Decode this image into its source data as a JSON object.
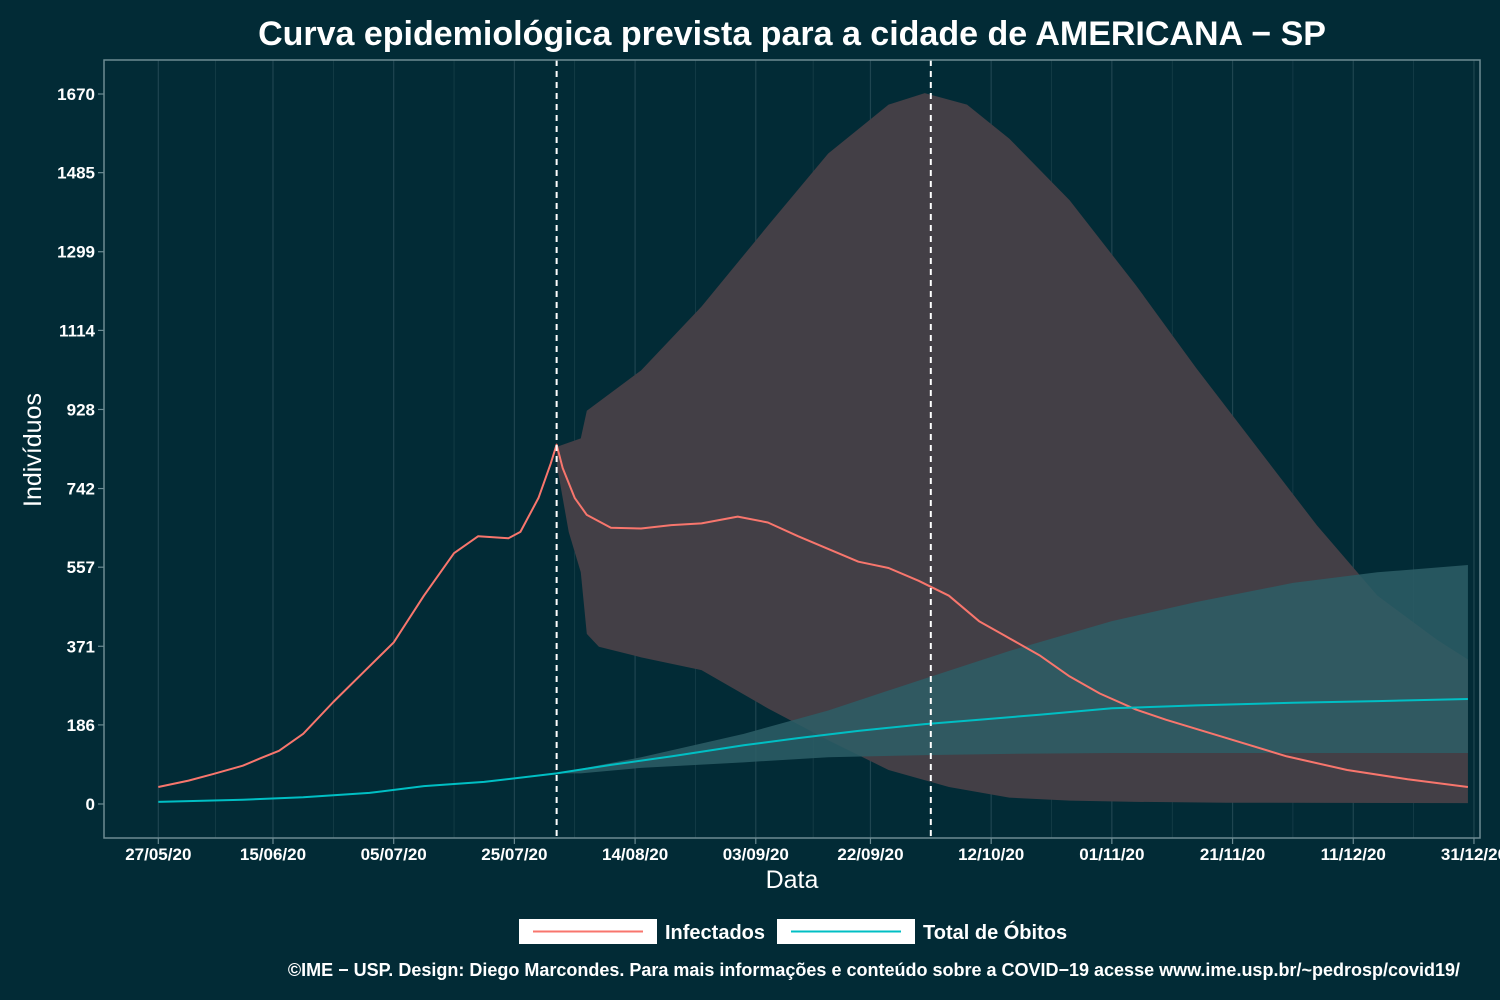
{
  "colors": {
    "background": "#022b36",
    "panel_border": "#6c8b92",
    "grid": "#1f4550",
    "infected": "#f8766d",
    "deaths": "#00bfc4",
    "infected_band": "#433f46",
    "deaths_band": "#2d5e66",
    "overlap_band": "#2c5b63",
    "vline": "#ffffff",
    "legend_key_bg": "#ffffff"
  },
  "chart_data": {
    "type": "line",
    "title": "Curva epidemiológica prevista para a cidade de AMERICANA − SP",
    "xlabel": "Data",
    "ylabel": "Indivíduos",
    "x_start": "2020-05-27",
    "x_end": "2020-12-30",
    "xlim": [
      "2020-05-18",
      "2021-01-01"
    ],
    "ylim": [
      -80,
      1750
    ],
    "yticks": [
      0,
      186,
      371,
      557,
      742,
      928,
      1114,
      1299,
      1485,
      1670
    ],
    "xticks": [
      {
        "date": "2020-05-27",
        "label": "27/05/20"
      },
      {
        "date": "2020-06-15",
        "label": "15/06/20"
      },
      {
        "date": "2020-07-05",
        "label": "05/07/20"
      },
      {
        "date": "2020-07-25",
        "label": "25/07/20"
      },
      {
        "date": "2020-08-14",
        "label": "14/08/20"
      },
      {
        "date": "2020-09-03",
        "label": "03/09/20"
      },
      {
        "date": "2020-09-22",
        "label": "22/09/20"
      },
      {
        "date": "2020-10-12",
        "label": "12/10/20"
      },
      {
        "date": "2020-11-01",
        "label": "01/11/20"
      },
      {
        "date": "2020-11-21",
        "label": "21/11/20"
      },
      {
        "date": "2020-12-11",
        "label": "11/12/20"
      },
      {
        "date": "2020-12-31",
        "label": "31/12/20"
      }
    ],
    "vlines": [
      "2020-08-01",
      "2020-10-02"
    ],
    "grid": true,
    "legend_position": "bottom",
    "series": [
      {
        "name": "Infectados",
        "points": [
          [
            "2020-05-27",
            40
          ],
          [
            "2020-06-01",
            55
          ],
          [
            "2020-06-05",
            70
          ],
          [
            "2020-06-10",
            90
          ],
          [
            "2020-06-13",
            108
          ],
          [
            "2020-06-16",
            125
          ],
          [
            "2020-06-20",
            165
          ],
          [
            "2020-06-25",
            240
          ],
          [
            "2020-06-30",
            310
          ],
          [
            "2020-07-05",
            380
          ],
          [
            "2020-07-10",
            490
          ],
          [
            "2020-07-15",
            590
          ],
          [
            "2020-07-19",
            630
          ],
          [
            "2020-07-24",
            625
          ],
          [
            "2020-07-26",
            640
          ],
          [
            "2020-07-29",
            720
          ],
          [
            "2020-07-31",
            800
          ],
          [
            "2020-08-01",
            845
          ],
          [
            "2020-08-02",
            790
          ],
          [
            "2020-08-04",
            720
          ],
          [
            "2020-08-06",
            680
          ],
          [
            "2020-08-10",
            650
          ],
          [
            "2020-08-15",
            648
          ],
          [
            "2020-08-20",
            656
          ],
          [
            "2020-08-25",
            660
          ],
          [
            "2020-08-31",
            676
          ],
          [
            "2020-09-05",
            662
          ],
          [
            "2020-09-10",
            630
          ],
          [
            "2020-09-15",
            600
          ],
          [
            "2020-09-20",
            570
          ],
          [
            "2020-09-25",
            555
          ],
          [
            "2020-09-30",
            525
          ],
          [
            "2020-10-05",
            490
          ],
          [
            "2020-10-10",
            430
          ],
          [
            "2020-10-15",
            390
          ],
          [
            "2020-10-20",
            350
          ],
          [
            "2020-10-25",
            300
          ],
          [
            "2020-10-30",
            260
          ],
          [
            "2020-11-05",
            222
          ],
          [
            "2020-11-10",
            198
          ],
          [
            "2020-11-20",
            155
          ],
          [
            "2020-11-30",
            112
          ],
          [
            "2020-12-10",
            80
          ],
          [
            "2020-12-20",
            58
          ],
          [
            "2020-12-30",
            40
          ]
        ]
      },
      {
        "name": "Total de Óbitos",
        "points": [
          [
            "2020-05-27",
            5
          ],
          [
            "2020-06-10",
            10
          ],
          [
            "2020-06-20",
            16
          ],
          [
            "2020-07-01",
            26
          ],
          [
            "2020-07-10",
            42
          ],
          [
            "2020-07-20",
            52
          ],
          [
            "2020-08-01",
            72
          ],
          [
            "2020-08-10",
            92
          ],
          [
            "2020-08-20",
            112
          ],
          [
            "2020-09-01",
            138
          ],
          [
            "2020-09-10",
            155
          ],
          [
            "2020-09-20",
            172
          ],
          [
            "2020-10-01",
            188
          ],
          [
            "2020-10-10",
            198
          ],
          [
            "2020-10-20",
            210
          ],
          [
            "2020-11-01",
            225
          ],
          [
            "2020-11-15",
            232
          ],
          [
            "2020-12-01",
            238
          ],
          [
            "2020-12-15",
            242
          ],
          [
            "2020-12-30",
            247
          ]
        ]
      }
    ],
    "bands": [
      {
        "series": "Infectados",
        "upper": [
          [
            "2020-08-01",
            840
          ],
          [
            "2020-08-05",
            860
          ],
          [
            "2020-08-06",
            925
          ],
          [
            "2020-08-15",
            1020
          ],
          [
            "2020-08-25",
            1170
          ],
          [
            "2020-09-05",
            1360
          ],
          [
            "2020-09-15",
            1530
          ],
          [
            "2020-09-25",
            1645
          ],
          [
            "2020-10-01",
            1672
          ],
          [
            "2020-10-08",
            1645
          ],
          [
            "2020-10-15",
            1565
          ],
          [
            "2020-10-25",
            1420
          ],
          [
            "2020-11-05",
            1220
          ],
          [
            "2020-11-15",
            1025
          ],
          [
            "2020-11-25",
            840
          ],
          [
            "2020-12-05",
            655
          ],
          [
            "2020-12-15",
            490
          ],
          [
            "2020-12-25",
            385
          ],
          [
            "2020-12-30",
            340
          ]
        ],
        "lower": [
          [
            "2020-08-01",
            800
          ],
          [
            "2020-08-03",
            640
          ],
          [
            "2020-08-05",
            545
          ],
          [
            "2020-08-06",
            400
          ],
          [
            "2020-08-08",
            370
          ],
          [
            "2020-08-15",
            345
          ],
          [
            "2020-08-25",
            315
          ],
          [
            "2020-09-05",
            225
          ],
          [
            "2020-09-15",
            150
          ],
          [
            "2020-09-25",
            80
          ],
          [
            "2020-10-05",
            40
          ],
          [
            "2020-10-15",
            15
          ],
          [
            "2020-10-25",
            8
          ],
          [
            "2020-11-05",
            5
          ],
          [
            "2020-11-20",
            3
          ],
          [
            "2020-12-30",
            2
          ]
        ]
      },
      {
        "series": "Total de Óbitos",
        "upper": [
          [
            "2020-08-01",
            72
          ],
          [
            "2020-08-15",
            110
          ],
          [
            "2020-09-01",
            165
          ],
          [
            "2020-09-15",
            220
          ],
          [
            "2020-10-01",
            295
          ],
          [
            "2020-10-15",
            360
          ],
          [
            "2020-11-01",
            430
          ],
          [
            "2020-11-15",
            475
          ],
          [
            "2020-12-01",
            520
          ],
          [
            "2020-12-15",
            545
          ],
          [
            "2020-12-30",
            562
          ]
        ],
        "lower": [
          [
            "2020-08-01",
            72
          ],
          [
            "2020-08-05",
            72
          ],
          [
            "2020-08-15",
            85
          ],
          [
            "2020-09-01",
            98
          ],
          [
            "2020-09-15",
            110
          ],
          [
            "2020-10-01",
            115
          ],
          [
            "2020-10-15",
            118
          ],
          [
            "2020-11-01",
            120
          ],
          [
            "2020-12-01",
            120
          ],
          [
            "2020-12-30",
            120
          ]
        ]
      }
    ]
  },
  "legend": {
    "items": [
      {
        "label": "Infectados"
      },
      {
        "label": "Total de Óbitos"
      }
    ]
  },
  "caption": "©IME − USP. Design: Diego Marcondes. Para mais informações e conteúdo sobre a COVID−19 acesse www.ime.usp.br/~pedrosp/covid19/"
}
